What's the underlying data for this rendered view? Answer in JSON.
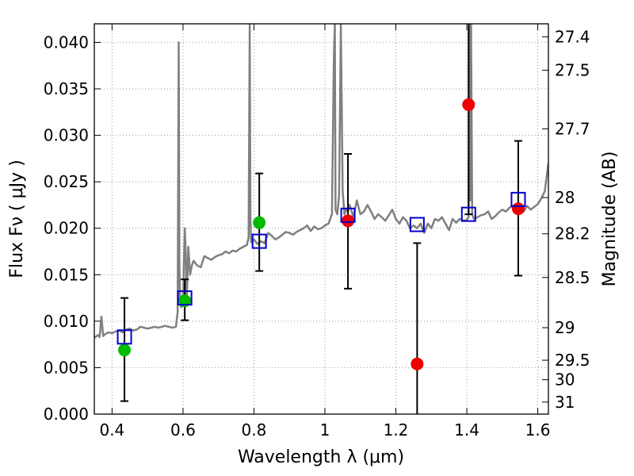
{
  "chart_data": {
    "type": "scatter",
    "xlabel": "Wavelength  λ (μm)",
    "ylabel": "Flux  Fν  ( μJy )",
    "ylabel_right": "Magnitude (AB)",
    "xlim": [
      0.35,
      1.63
    ],
    "ylim": [
      0.0,
      0.042
    ],
    "grid": true,
    "x_ticks": [
      0.4,
      0.6,
      0.8,
      1.0,
      1.2,
      1.4,
      1.6
    ],
    "x_tick_labels": [
      "0.4",
      "0.6",
      "0.8",
      "1",
      "1.2",
      "1.4",
      "1.6"
    ],
    "y_ticks": [
      0.0,
      0.005,
      0.01,
      0.015,
      0.02,
      0.025,
      0.03,
      0.035,
      0.04
    ],
    "y_tick_labels": [
      "0.000",
      "0.005",
      "0.010",
      "0.015",
      "0.020",
      "0.025",
      "0.030",
      "0.035",
      "0.040"
    ],
    "right_ticks": [
      {
        "label": "27.4",
        "flux": 0.0406
      },
      {
        "label": "27.5",
        "flux": 0.037
      },
      {
        "label": "27.7",
        "flux": 0.0307
      },
      {
        "label": "28",
        "flux": 0.0233
      },
      {
        "label": "28.2",
        "flux": 0.0194
      },
      {
        "label": "28.5",
        "flux": 0.0147
      },
      {
        "label": "29",
        "flux": 0.0093
      },
      {
        "label": "29.5",
        "flux": 0.0058
      },
      {
        "label": "30",
        "flux": 0.0037
      },
      {
        "label": "31",
        "flux": 0.0013
      }
    ],
    "colors": {
      "spectrum": "#808080",
      "model": "#0000cc",
      "detection": "#00bb00",
      "measurement": "#ee0000",
      "errorbar": "#000000",
      "grid": "#999999"
    },
    "series": [
      {
        "kind": "line",
        "x": [
          0.35,
          0.36,
          0.365,
          0.37,
          0.375,
          0.38,
          0.39,
          0.4,
          0.41,
          0.42,
          0.43,
          0.44,
          0.45,
          0.46,
          0.47,
          0.48,
          0.49,
          0.5,
          0.51,
          0.52,
          0.53,
          0.54,
          0.55,
          0.56,
          0.57,
          0.58,
          0.585,
          0.588,
          0.59,
          0.592,
          0.595,
          0.6,
          0.605,
          0.608,
          0.61,
          0.612,
          0.615,
          0.62,
          0.625,
          0.63,
          0.64,
          0.65,
          0.66,
          0.67,
          0.68,
          0.69,
          0.7,
          0.71,
          0.72,
          0.73,
          0.74,
          0.75,
          0.76,
          0.77,
          0.78,
          0.785,
          0.788,
          0.79,
          0.792,
          0.8,
          0.81,
          0.82,
          0.83,
          0.84,
          0.85,
          0.86,
          0.87,
          0.88,
          0.89,
          0.9,
          0.91,
          0.92,
          0.93,
          0.94,
          0.95,
          0.96,
          0.97,
          0.98,
          0.99,
          1.0,
          1.01,
          1.02,
          1.025,
          1.028,
          1.03,
          1.035,
          1.04,
          1.045,
          1.05,
          1.055,
          1.06,
          1.065,
          1.07,
          1.08,
          1.09,
          1.1,
          1.11,
          1.12,
          1.13,
          1.14,
          1.15,
          1.16,
          1.17,
          1.18,
          1.19,
          1.2,
          1.21,
          1.22,
          1.23,
          1.24,
          1.25,
          1.26,
          1.27,
          1.28,
          1.29,
          1.3,
          1.31,
          1.32,
          1.33,
          1.34,
          1.35,
          1.36,
          1.37,
          1.38,
          1.39,
          1.4,
          1.405,
          1.408,
          1.41,
          1.412,
          1.415,
          1.42,
          1.43,
          1.44,
          1.45,
          1.46,
          1.47,
          1.48,
          1.49,
          1.5,
          1.51,
          1.52,
          1.53,
          1.54,
          1.55,
          1.56,
          1.57,
          1.58,
          1.59,
          1.6,
          1.61,
          1.62,
          1.63
        ],
        "y": [
          0.0082,
          0.0085,
          0.0083,
          0.0105,
          0.0084,
          0.0086,
          0.0088,
          0.0087,
          0.0089,
          0.009,
          0.0088,
          0.0091,
          0.0092,
          0.009,
          0.0091,
          0.0094,
          0.0093,
          0.0092,
          0.0093,
          0.0094,
          0.0093,
          0.0094,
          0.0095,
          0.0094,
          0.0093,
          0.0094,
          0.011,
          0.04,
          0.016,
          0.012,
          0.0115,
          0.0122,
          0.02,
          0.017,
          0.012,
          0.014,
          0.018,
          0.015,
          0.016,
          0.0165,
          0.016,
          0.0158,
          0.017,
          0.0168,
          0.0166,
          0.0169,
          0.0171,
          0.0172,
          0.0175,
          0.0173,
          0.0176,
          0.0175,
          0.0178,
          0.018,
          0.0182,
          0.019,
          0.042,
          0.021,
          0.0185,
          0.0188,
          0.0183,
          0.0186,
          0.0184,
          0.0195,
          0.0192,
          0.0188,
          0.019,
          0.0193,
          0.0196,
          0.0195,
          0.0193,
          0.0196,
          0.0198,
          0.02,
          0.0203,
          0.0197,
          0.0202,
          0.0199,
          0.02,
          0.0203,
          0.0205,
          0.0215,
          0.038,
          0.042,
          0.022,
          0.0215,
          0.0235,
          0.042,
          0.024,
          0.0215,
          0.022,
          0.0218,
          0.0225,
          0.0212,
          0.023,
          0.0215,
          0.0218,
          0.0225,
          0.0218,
          0.021,
          0.0215,
          0.0212,
          0.0208,
          0.0214,
          0.022,
          0.021,
          0.0205,
          0.0212,
          0.0208,
          0.02,
          0.0203,
          0.02,
          0.0205,
          0.0195,
          0.0205,
          0.02,
          0.021,
          0.0208,
          0.0212,
          0.0205,
          0.0198,
          0.021,
          0.0206,
          0.021,
          0.0208,
          0.0209,
          0.0212,
          0.042,
          0.023,
          0.042,
          0.0215,
          0.021,
          0.0212,
          0.0214,
          0.0215,
          0.0218,
          0.021,
          0.0213,
          0.0217,
          0.022,
          0.0218,
          0.0222,
          0.0224,
          0.0225,
          0.0222,
          0.0218,
          0.0224,
          0.022,
          0.0223,
          0.0226,
          0.0232,
          0.024,
          0.027
        ]
      },
      {
        "kind": "squares",
        "x": [
          0.435,
          0.605,
          0.815,
          1.065,
          1.26,
          1.405,
          1.545
        ],
        "y": [
          0.0083,
          0.0125,
          0.0186,
          0.0214,
          0.0204,
          0.0215,
          0.0231
        ]
      },
      {
        "kind": "points_green",
        "x": [
          0.435,
          0.605,
          0.815
        ],
        "y": [
          0.0069,
          0.0122,
          0.0206
        ]
      },
      {
        "kind": "points_red",
        "x": [
          1.065,
          1.26,
          1.405,
          1.545
        ],
        "y": [
          0.0208,
          0.0054,
          0.0333,
          0.0221
        ]
      },
      {
        "kind": "errorbars",
        "x": [
          0.435,
          0.605,
          0.815,
          1.065,
          1.26,
          1.405,
          1.545
        ],
        "low": [
          0.0014,
          0.0101,
          0.0154,
          0.0135,
          0.0,
          0.0215,
          0.0149
        ],
        "high": [
          0.0125,
          0.0145,
          0.0259,
          0.028,
          0.0184,
          0.042,
          0.0294
        ]
      }
    ]
  }
}
